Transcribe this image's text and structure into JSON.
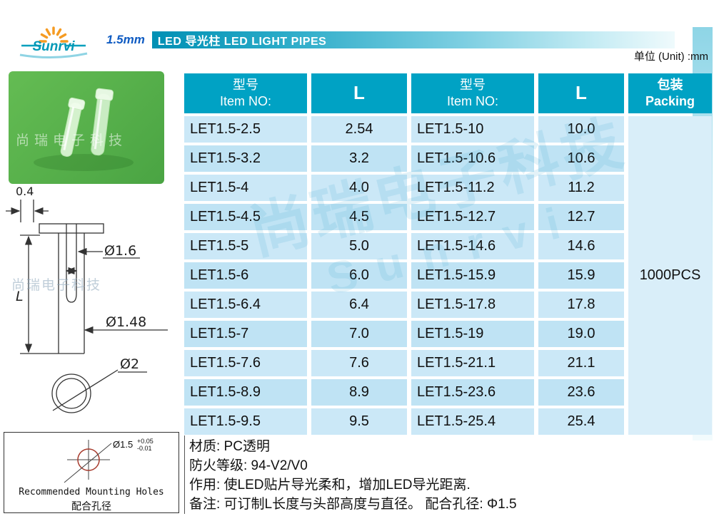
{
  "logo": {
    "brand": "Sunrvi"
  },
  "banner": {
    "size_label": "1.5mm",
    "title": "LED 导光柱 LED LIGHT PIPES"
  },
  "unit_note": "单位 (Unit) :mm",
  "photo": {
    "watermark": "尚瑞电子科技"
  },
  "drawing": {
    "dim_cap_thickness": "0.4",
    "dim_inner_diameter": "Ø1.6",
    "dim_length": "L",
    "dim_body_diameter": "Ø1.48",
    "dim_head_diameter": "Ø2",
    "watermark": "尚瑞电子科技"
  },
  "mounting_box": {
    "hole_diameter": "Ø1.5",
    "tolerance_plus": "+0.05",
    "tolerance_minus": "-0.01",
    "title_en": "Recommended Mounting Holes",
    "title_cn": "配合孔径"
  },
  "table": {
    "header": {
      "item_cn": "型号",
      "item_en": "Item NO:",
      "l_label": "L",
      "packing_cn": "包装",
      "packing_en": "Packing"
    },
    "packing_value": "1000PCS",
    "watermark_line1": "尚瑞电子科技",
    "watermark_line2": "Sunrvi",
    "rows": [
      {
        "item1": "LET1.5-2.5",
        "l1": "2.54",
        "item2": "LET1.5-10",
        "l2": "10.0"
      },
      {
        "item1": "LET1.5-3.2",
        "l1": "3.2",
        "item2": "LET1.5-10.6",
        "l2": "10.6"
      },
      {
        "item1": "LET1.5-4",
        "l1": "4.0",
        "item2": "LET1.5-11.2",
        "l2": "11.2"
      },
      {
        "item1": "LET1.5-4.5",
        "l1": "4.5",
        "item2": "LET1.5-12.7",
        "l2": "12.7"
      },
      {
        "item1": "LET1.5-5",
        "l1": "5.0",
        "item2": "LET1.5-14.6",
        "l2": "14.6"
      },
      {
        "item1": "LET1.5-6",
        "l1": "6.0",
        "item2": "LET1.5-15.9",
        "l2": "15.9"
      },
      {
        "item1": "LET1.5-6.4",
        "l1": "6.4",
        "item2": "LET1.5-17.8",
        "l2": "17.8"
      },
      {
        "item1": "LET1.5-7",
        "l1": "7.0",
        "item2": "LET1.5-19",
        "l2": "19.0"
      },
      {
        "item1": "LET1.5-7.6",
        "l1": "7.6",
        "item2": "LET1.5-21.1",
        "l2": "21.1"
      },
      {
        "item1": "LET1.5-8.9",
        "l1": "8.9",
        "item2": "LET1.5-23.6",
        "l2": "23.6"
      },
      {
        "item1": "LET1.5-9.5",
        "l1": "9.5",
        "item2": "LET1.5-25.4",
        "l2": "25.4"
      }
    ]
  },
  "notes": {
    "material": "材质: PC透明",
    "fire_rating": "防火等级: 94-V2/V0",
    "function": "作用: 使LED贴片导光柔和，增加LED导光距离.",
    "remark": "备注: 可订制L长度与头部高度与直径。 配合孔径: Φ1.5"
  },
  "colors": {
    "teal_header": "#00a2c4",
    "row_light": "#cbe8f7",
    "row_dark": "#bfe3f4",
    "banner_blue": "#0f5bc2",
    "photo_green": "#54b04a",
    "accent_orange": "#f59b22"
  }
}
